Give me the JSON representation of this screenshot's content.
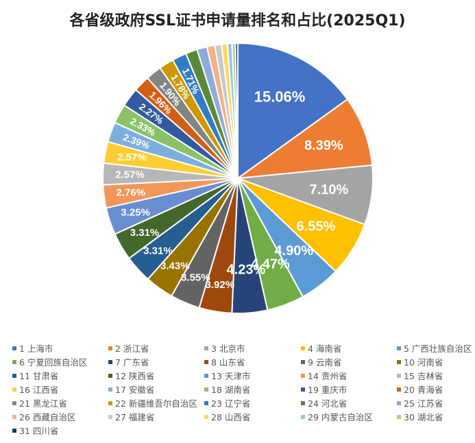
{
  "chart_data": {
    "type": "pie",
    "title": "各省级政府SSL证书申请量排名和占比(2025Q1)",
    "legend_position": "bottom",
    "label_format": "percent",
    "categories": [
      "1 上海市",
      "2 浙江省",
      "3 北京市",
      "4 海南省",
      "5 广西壮族自治区",
      "6 宁夏回族自治区",
      "7 广东省",
      "8 山东省",
      "9 云南省",
      "10 河南省",
      "11 甘肃省",
      "12 陕西省",
      "13 天津市",
      "14 贵州省",
      "15 吉林省",
      "16 江西省",
      "17 安徽省",
      "18 湖南省",
      "19 重庆市",
      "20 青海省",
      "21 黑龙江省",
      "22 新疆维吾尔自治区",
      "23 辽宁省",
      "24 河北省",
      "25 江苏省",
      "26 西藏自治区",
      "27 福建省",
      "28 山西省",
      "29 内蒙古自治区",
      "30 湖北省",
      "31 四川省"
    ],
    "values": [
      15.06,
      8.39,
      7.1,
      6.55,
      4.9,
      4.47,
      4.23,
      3.92,
      3.55,
      3.43,
      3.31,
      3.31,
      3.25,
      2.76,
      2.57,
      2.57,
      2.39,
      2.33,
      2.27,
      1.96,
      1.9,
      1.78,
      1.71,
      1.4,
      1.2,
      0.95,
      0.8,
      0.7,
      0.55,
      0.4,
      0.29
    ],
    "labels": [
      "15.06%",
      "8.39%",
      "7.10%",
      "6.55%",
      "4.90%",
      "4.47%",
      "4.23%",
      "3.92%",
      "3.55%",
      "3.43%",
      "3.31%",
      "3.31%",
      "3.25%",
      "2.76%",
      "2.57%",
      "2.57%",
      "2.39%",
      "2.33%",
      "2.27%",
      "1.96%",
      "1.90%",
      "1.78%",
      "1.71%",
      "",
      "",
      "",
      "",
      "",
      "",
      "",
      ""
    ],
    "colors": [
      "#4472C4",
      "#ED7D31",
      "#A5A5A5",
      "#FFC000",
      "#5B9BD5",
      "#70AD47",
      "#264478",
      "#9E480E",
      "#636363",
      "#997300",
      "#255E91",
      "#43682B",
      "#698ED0",
      "#F1975A",
      "#B7B7B7",
      "#FFCD33",
      "#7CAFDD",
      "#8CC168",
      "#335AA1",
      "#D26012",
      "#848484",
      "#CC9A00",
      "#327DC2",
      "#5A8A39",
      "#8FAADC",
      "#F4B183",
      "#C9C9C9",
      "#FFD966",
      "#9DC3E6",
      "#A9D18E",
      "#203864"
    ],
    "start": "12 o'clock, clockwise"
  }
}
